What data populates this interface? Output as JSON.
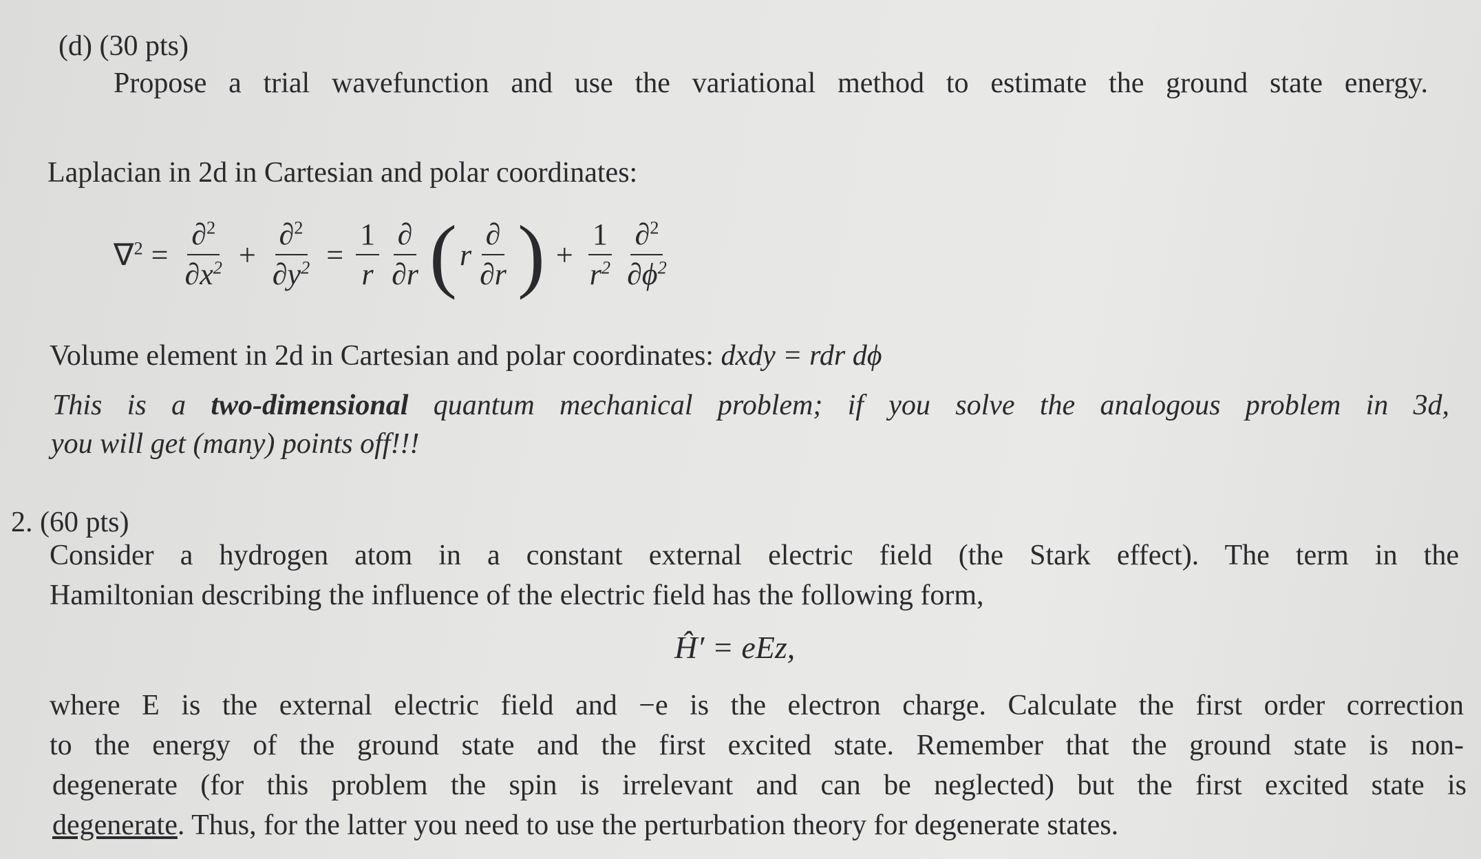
{
  "part_d": {
    "label": "(d) (30 pts)",
    "prompt": "Propose a trial wavefunction and use the variational method to estimate the ground state energy."
  },
  "laplacian": {
    "intro": "Laplacian in 2d in Cartesian and polar coordinates:",
    "nabla": "∇",
    "sq": "2",
    "eq": "=",
    "plus": "+",
    "d2": "∂",
    "dx2": "∂x",
    "dy2": "∂y",
    "one": "1",
    "r": "r",
    "d": "∂",
    "dr": "∂r",
    "dphi2": "∂ϕ",
    "lparen": "(",
    "rparen": ")"
  },
  "volume": {
    "text": "Volume element in 2d in Cartesian and polar coordinates:",
    "formula": "dxdy = rdr dϕ"
  },
  "warning": {
    "pre": "This is a",
    "bold": "two-dimensional",
    "post": "quantum mechanical problem; if you solve the analogous problem in 3d,",
    "line2": "you will get (many) points off!!!"
  },
  "problem2": {
    "label": "2. (60 pts)",
    "lines": [
      "Consider a hydrogen atom in a constant external electric field (the Stark effect). The term in the",
      "Hamiltonian describing the influence of the electric field has the following form,"
    ],
    "hamiltonian": "Ĥ′ = eEz,",
    "lines2": [
      "where E is the external electric field and −e is the electron charge. Calculate the first order correction",
      "to the energy of the ground state and the first excited state. Remember that the ground state is non-",
      "degenerate (for this problem the spin is irrelevant and can be neglected) but the first excited state is"
    ],
    "last_underlined": "degenerate",
    "last_rest": ". Thus, for the latter you need to use the perturbation theory for degenerate states."
  }
}
